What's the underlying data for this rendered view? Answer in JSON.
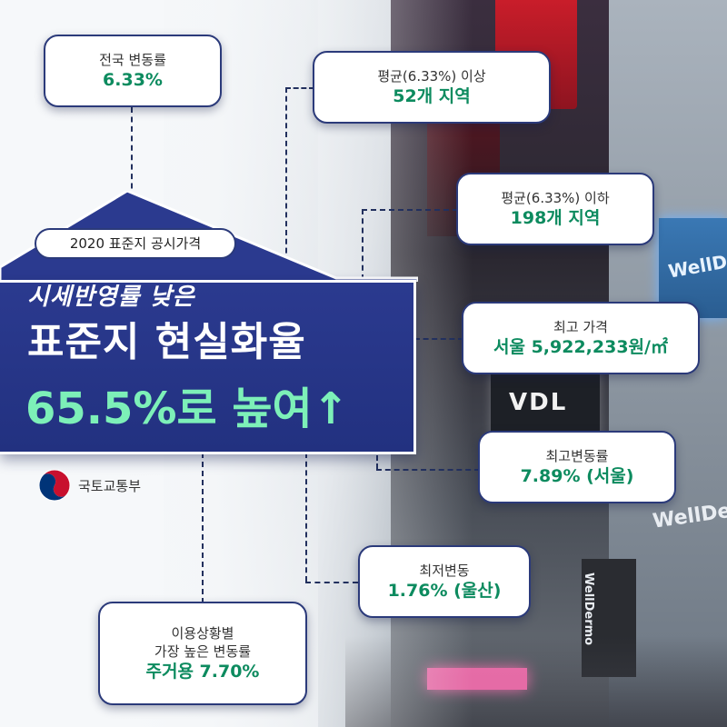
{
  "badge": {
    "tag": "2020 표준지 공시가격",
    "line1": "시세반영률 낮은",
    "line2": "표준지 현실화율",
    "line3": "65.5%로 높여↑"
  },
  "ministry": {
    "name": "국토교통부",
    "emblem": "taegeuk-emblem-icon"
  },
  "callouts": {
    "national": {
      "label": "전국 변동률",
      "value": "6.33%"
    },
    "above_avg": {
      "label": "평균(6.33%) 이상",
      "value": "52개 지역"
    },
    "below_avg": {
      "label": "평균(6.33%) 이하",
      "value": "198개 지역"
    },
    "top_price": {
      "label": "최고 가격",
      "value": "서울 5,922,233원/㎡"
    },
    "top_rate": {
      "label": "최고변동률",
      "value": "7.89% (서울)"
    },
    "low_rate": {
      "label": "최저변동",
      "value": "1.76% (울산)"
    },
    "usage": {
      "label1": "이용상황별",
      "label2": "가장 높은 변동률",
      "value": "주거용 7.70%"
    }
  },
  "background_signs": {
    "sign1": "WellDe",
    "sign2": "WellDer",
    "sign3": "WellDermo",
    "sign4": "VDL"
  },
  "colors": {
    "navy": "#2b3a8f",
    "accent_green": "#0d8b5f",
    "title_green": "#7df0b8"
  }
}
